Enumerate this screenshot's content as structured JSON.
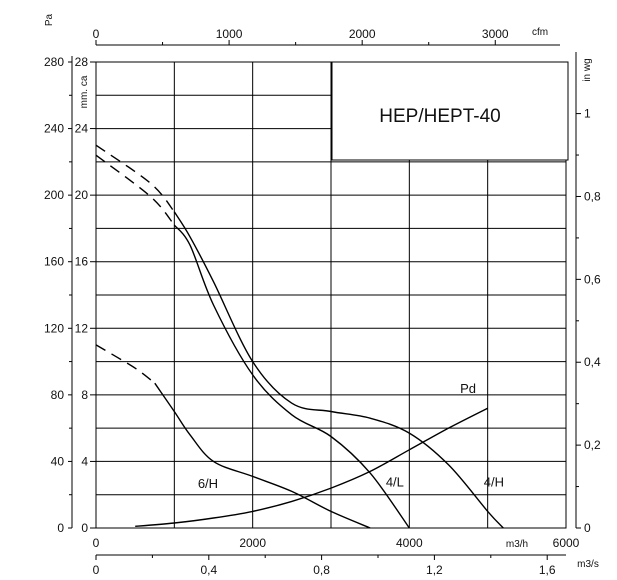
{
  "chart_data": {
    "type": "line",
    "title": "HEP/HEPT-40",
    "pressure_axis": {
      "unit": "Pa",
      "ticks": [
        0,
        40,
        80,
        120,
        160,
        200,
        240,
        280
      ],
      "range": [
        0,
        280
      ]
    },
    "mmca_axis": {
      "unit": "mm. ca",
      "ticks": [
        0,
        4,
        8,
        12,
        16,
        20,
        24,
        28
      ]
    },
    "inwg_axis": {
      "unit": "in wg",
      "ticks": [
        "0",
        "0,2",
        "0,4",
        "0,6",
        "0,8",
        "1"
      ],
      "values": [
        0,
        0.2,
        0.4,
        0.6,
        0.8,
        1.0
      ]
    },
    "flow_m3h_axis": {
      "unit": "m3/h",
      "ticks": [
        0,
        2000,
        4000,
        6000
      ],
      "range": [
        0,
        6000
      ]
    },
    "flow_m3s_axis": {
      "unit": "m3/s",
      "ticks": [
        "0",
        "0,4",
        "0,8",
        "1,2",
        "1,6"
      ],
      "values": [
        0,
        0.4,
        0.8,
        1.2,
        1.6
      ]
    },
    "flow_cfm_axis": {
      "unit": "cfm",
      "ticks": [
        0,
        1000,
        2000,
        3000
      ]
    },
    "grid": true,
    "series": [
      {
        "name": "4/H",
        "style": "solid",
        "dashed_segment": [
          [
            0,
            230
          ],
          [
            700,
            207
          ],
          [
            1000,
            190
          ]
        ],
        "points": [
          [
            1000,
            190
          ],
          [
            1200,
            175
          ],
          [
            1500,
            148
          ],
          [
            2000,
            100
          ],
          [
            2500,
            75
          ],
          [
            3000,
            70
          ],
          [
            3500,
            66
          ],
          [
            4000,
            57
          ],
          [
            4500,
            38
          ],
          [
            5000,
            10
          ],
          [
            5200,
            0
          ]
        ]
      },
      {
        "name": "4/L",
        "style": "solid",
        "dashed_segment": [
          [
            0,
            224
          ],
          [
            700,
            199
          ],
          [
            1000,
            182
          ]
        ],
        "points": [
          [
            1000,
            182
          ],
          [
            1200,
            170
          ],
          [
            1500,
            134
          ],
          [
            2000,
            92
          ],
          [
            2500,
            68
          ],
          [
            3000,
            55
          ],
          [
            3500,
            33
          ],
          [
            4000,
            0
          ]
        ]
      },
      {
        "name": "6/H",
        "style": "solid",
        "dashed_segment": [
          [
            0,
            110
          ],
          [
            500,
            96
          ],
          [
            750,
            87
          ]
        ],
        "points": [
          [
            750,
            87
          ],
          [
            1000,
            70
          ],
          [
            1200,
            56
          ],
          [
            1500,
            40
          ],
          [
            2000,
            31
          ],
          [
            2500,
            22
          ],
          [
            3000,
            10
          ],
          [
            3500,
            0
          ]
        ]
      },
      {
        "name": "Pd",
        "style": "solid",
        "points": [
          [
            500,
            1
          ],
          [
            1000,
            3
          ],
          [
            1500,
            6
          ],
          [
            2000,
            10
          ],
          [
            2500,
            16
          ],
          [
            3000,
            24
          ],
          [
            3500,
            34
          ],
          [
            4000,
            47
          ],
          [
            4500,
            60
          ],
          [
            5000,
            72
          ]
        ]
      }
    ]
  }
}
